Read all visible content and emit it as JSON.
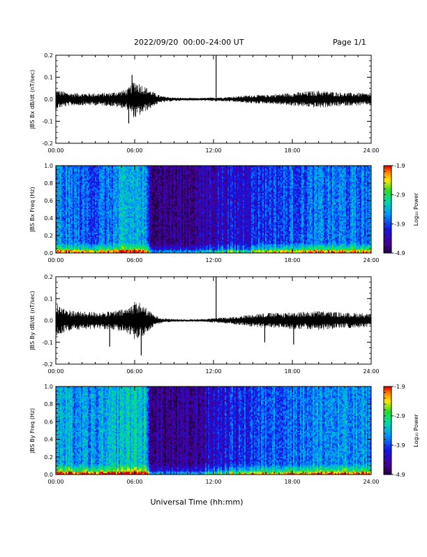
{
  "header": {
    "title": "2022/09/20  00:00–24:00 UT",
    "page_label": "Page 1/1"
  },
  "chart_data": [
    {
      "type": "line",
      "title": "",
      "ylabel": "JBS Bx dB/dt (nT/sec)",
      "xlabel": "",
      "xlim": [
        0,
        24
      ],
      "ylim": [
        -0.2,
        0.2
      ],
      "x_ticks": [
        "00:00",
        "06:00",
        "12:00",
        "18:00",
        "24:00"
      ],
      "y_ticks": [
        "0.2",
        "0.1",
        "0.0",
        "-0.1",
        "-0.2"
      ],
      "envelope": {
        "hours": [
          0,
          1,
          2,
          3,
          4,
          4.5,
          5,
          5.5,
          6,
          6.5,
          7,
          7.5,
          8,
          9,
          10,
          11,
          12,
          13,
          14,
          15,
          16,
          17,
          18,
          19,
          20,
          21,
          22,
          23,
          24
        ],
        "amplitude": [
          0.045,
          0.03,
          0.028,
          0.028,
          0.03,
          0.035,
          0.04,
          0.05,
          0.09,
          0.07,
          0.05,
          0.03,
          0.015,
          0.008,
          0.006,
          0.006,
          0.008,
          0.01,
          0.015,
          0.02,
          0.02,
          0.025,
          0.03,
          0.035,
          0.04,
          0.035,
          0.03,
          0.03,
          0.025
        ]
      },
      "spikes": [
        {
          "hour": 12.2,
          "value": 0.2
        },
        {
          "hour": 12.2,
          "value": -0.01
        },
        {
          "hour": 5.55,
          "value": -0.11
        },
        {
          "hour": 5.8,
          "value": 0.11
        }
      ]
    },
    {
      "type": "heatmap",
      "title": "",
      "ylabel": "JBS Bx Freq (Hz)",
      "xlabel": "",
      "xlim": [
        0,
        24
      ],
      "ylim": [
        0.0,
        1.0
      ],
      "x_ticks": [
        "00:00",
        "06:00",
        "12:00",
        "18:00",
        "24:00"
      ],
      "y_ticks": [
        "1.0",
        "0.8",
        "0.6",
        "0.4",
        "0.2",
        "0.0"
      ],
      "colorbar": {
        "label": "Log₁₀ Power",
        "min": -4.9,
        "max": -1.9,
        "ticks": [
          "-1.9",
          "-2.9",
          "-3.9",
          "-4.9"
        ]
      },
      "activity": {
        "hours": [
          0,
          1,
          2,
          3,
          4,
          5,
          6,
          6.8,
          7.2,
          8,
          9,
          10,
          11,
          12,
          13,
          14,
          15,
          16,
          17,
          18,
          19,
          20,
          21,
          22,
          23,
          24
        ],
        "log_power": [
          -3.6,
          -3.7,
          -3.8,
          -3.8,
          -3.7,
          -3.5,
          -3.4,
          -3.5,
          -4.5,
          -4.6,
          -4.6,
          -4.6,
          -4.5,
          -4.3,
          -4.2,
          -4.2,
          -4.0,
          -3.9,
          -3.9,
          -3.8,
          -3.8,
          -3.7,
          -3.7,
          -3.7,
          -3.7,
          -3.7
        ]
      }
    },
    {
      "type": "line",
      "title": "",
      "ylabel": "JBS By dB/dt (nT/sec)",
      "xlabel": "",
      "xlim": [
        0,
        24
      ],
      "ylim": [
        -0.2,
        0.2
      ],
      "x_ticks": [
        "00:00",
        "06:00",
        "12:00",
        "18:00",
        "24:00"
      ],
      "y_ticks": [
        "0.2",
        "0.1",
        "0.0",
        "-0.1",
        "-0.2"
      ],
      "envelope": {
        "hours": [
          0,
          0.5,
          1,
          2,
          3,
          4,
          4.5,
          5,
          5.5,
          6,
          6.5,
          7,
          7.5,
          8,
          9,
          10,
          11,
          12,
          13,
          14,
          15,
          16,
          17,
          18,
          19,
          20,
          21,
          22,
          23,
          24
        ],
        "amplitude": [
          0.08,
          0.06,
          0.05,
          0.04,
          0.04,
          0.04,
          0.045,
          0.05,
          0.06,
          0.09,
          0.08,
          0.05,
          0.025,
          0.012,
          0.006,
          0.005,
          0.006,
          0.01,
          0.015,
          0.02,
          0.03,
          0.035,
          0.035,
          0.04,
          0.04,
          0.045,
          0.04,
          0.035,
          0.035,
          0.03
        ]
      },
      "spikes": [
        {
          "hour": 12.2,
          "value": 0.2
        },
        {
          "hour": 6.5,
          "value": -0.16
        },
        {
          "hour": 4.1,
          "value": -0.12
        },
        {
          "hour": 15.9,
          "value": -0.1
        },
        {
          "hour": 18.1,
          "value": -0.11
        }
      ]
    },
    {
      "type": "heatmap",
      "title": "",
      "ylabel": "JBS By Freq (Hz)",
      "xlabel": "Universal Time (hh:mm)",
      "xlim": [
        0,
        24
      ],
      "ylim": [
        0.0,
        1.0
      ],
      "x_ticks": [
        "00:00",
        "06:00",
        "12:00",
        "18:00",
        "24:00"
      ],
      "y_ticks": [
        "1.0",
        "0.8",
        "0.6",
        "0.4",
        "0.2",
        "0.0"
      ],
      "colorbar": {
        "label": "Log₁₀ Power",
        "min": -4.9,
        "max": -1.9,
        "ticks": [
          "-1.9",
          "-2.9",
          "-3.9",
          "-4.9"
        ]
      },
      "activity": {
        "hours": [
          0,
          1,
          2,
          3,
          4,
          5,
          6,
          6.8,
          7.2,
          8,
          9,
          10,
          11,
          12,
          13,
          14,
          15,
          16,
          17,
          18,
          19,
          20,
          21,
          22,
          23,
          24
        ],
        "log_power": [
          -3.4,
          -3.5,
          -3.6,
          -3.6,
          -3.5,
          -3.3,
          -3.2,
          -3.3,
          -4.5,
          -4.6,
          -4.6,
          -4.6,
          -4.5,
          -4.2,
          -4.1,
          -4.0,
          -3.9,
          -3.8,
          -3.7,
          -3.7,
          -3.6,
          -3.6,
          -3.6,
          -3.6,
          -3.6,
          -3.6
        ]
      }
    }
  ]
}
